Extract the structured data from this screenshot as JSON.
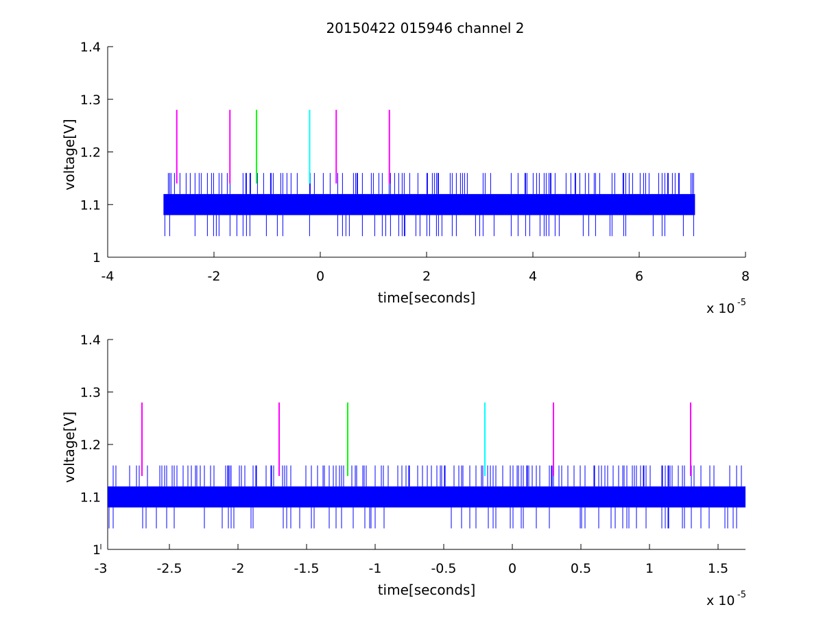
{
  "figure": {
    "title": "20150422 015946 channel 2"
  },
  "chart_data": [
    {
      "type": "line",
      "title": "20150422 015946 channel 2",
      "xlabel": "time[seconds]",
      "ylabel": "voltage[V]",
      "x_exponent_label": "x 10",
      "x_exponent_power": "-5",
      "xlim": [
        -4e-05,
        8e-05
      ],
      "ylim": [
        1,
        1.4
      ],
      "xticks": [
        -4e-05,
        -2e-05,
        0,
        2e-05,
        4e-05,
        6e-05,
        8e-05
      ],
      "xtick_labels": [
        "-4",
        "-2",
        "0",
        "2",
        "4",
        "6",
        "8"
      ],
      "yticks": [
        1,
        1.1,
        1.2,
        1.3,
        1.4
      ],
      "ytick_labels": [
        "1",
        "1.1",
        "1.2",
        "1.3",
        "1.4"
      ],
      "grid": false,
      "series": [
        {
          "color": "#0000ff",
          "x_range": [
            -2.95e-05,
            7.05e-05
          ],
          "band_low": 1.08,
          "band_high": 1.12,
          "spike_high": 1.16,
          "spike_low": 1.04
        }
      ],
      "markers": [
        {
          "x": -2.7e-05,
          "color": "#ff00ff",
          "y_low": 1.14,
          "y_high": 1.28
        },
        {
          "x": -1.7e-05,
          "color": "#ff00ff",
          "y_low": 1.14,
          "y_high": 1.28
        },
        {
          "x": -1.2e-05,
          "color": "#00ff00",
          "y_low": 1.14,
          "y_high": 1.28
        },
        {
          "x": -2e-06,
          "color": "#00ffff",
          "y_low": 1.14,
          "y_high": 1.28
        },
        {
          "x": 3e-06,
          "color": "#ff00ff",
          "y_low": 1.14,
          "y_high": 1.28
        },
        {
          "x": 1.3e-05,
          "color": "#ff00ff",
          "y_low": 1.14,
          "y_high": 1.28
        }
      ]
    },
    {
      "type": "line",
      "title": "",
      "xlabel": "time[seconds]",
      "ylabel": "voltage[V]",
      "x_exponent_label": "x 10",
      "x_exponent_power": "-5",
      "xlim": [
        -2.95e-05,
        1.7e-05
      ],
      "ylim": [
        1,
        1.4
      ],
      "xticks": [
        -3e-05,
        -2.5e-05,
        -2e-05,
        -1.5e-05,
        -1e-05,
        -5e-06,
        0,
        5e-06,
        1e-05,
        1.5e-05
      ],
      "xtick_labels": [
        "-3",
        "-2.5",
        "-2",
        "-1.5",
        "-1",
        "-0.5",
        "0",
        "0.5",
        "1",
        "1.5"
      ],
      "yticks": [
        1,
        1.1,
        1.2,
        1.3,
        1.4
      ],
      "ytick_labels": [
        "1",
        "1.1",
        "1.2",
        "1.3",
        "1.4"
      ],
      "grid": false,
      "series": [
        {
          "color": "#0000ff",
          "x_range": [
            -2.95e-05,
            1.7e-05
          ],
          "band_low": 1.08,
          "band_high": 1.12,
          "spike_high": 1.16,
          "spike_low": 1.04
        }
      ],
      "markers": [
        {
          "x": -2.7e-05,
          "color": "#ff00ff",
          "y_low": 1.14,
          "y_high": 1.28
        },
        {
          "x": -1.7e-05,
          "color": "#ff00ff",
          "y_low": 1.14,
          "y_high": 1.28
        },
        {
          "x": -1.2e-05,
          "color": "#00ff00",
          "y_low": 1.14,
          "y_high": 1.28
        },
        {
          "x": -2e-06,
          "color": "#00ffff",
          "y_low": 1.14,
          "y_high": 1.28
        },
        {
          "x": 3e-06,
          "color": "#ff00ff",
          "y_low": 1.14,
          "y_high": 1.28
        },
        {
          "x": 1.3e-05,
          "color": "#ff00ff",
          "y_low": 1.14,
          "y_high": 1.28
        }
      ]
    }
  ]
}
